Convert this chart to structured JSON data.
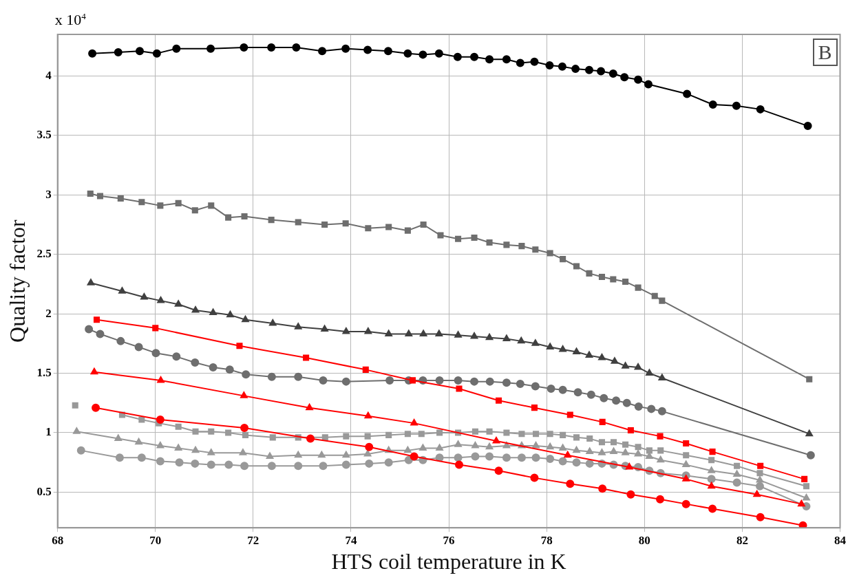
{
  "chart_data": {
    "type": "line",
    "xlabel": "HTS coil temperature in K",
    "ylabel": "Quality factor",
    "annotations": [
      "x 10$^{4}$",
      "B"
    ],
    "xlim": [
      68,
      84
    ],
    "xticks": [
      68,
      70,
      72,
      74,
      76,
      78,
      80,
      82,
      84
    ],
    "ylim": [
      0.2,
      4.35
    ],
    "yticks": [
      0.5,
      1,
      1.5,
      2,
      2.5,
      3,
      3.5,
      4
    ],
    "grid": true,
    "legend": false,
    "line_style": "solid",
    "series": [
      {
        "color": "#000000",
        "marker": "circle",
        "x": [
          68.71,
          69.24,
          69.68,
          70.03,
          70.43,
          71.13,
          71.81,
          72.37,
          72.88,
          73.41,
          73.89,
          74.34,
          74.76,
          75.16,
          75.47,
          75.8,
          76.18,
          76.52,
          76.83,
          77.18,
          77.46,
          77.75,
          78.06,
          78.32,
          78.59,
          78.87,
          79.11,
          79.36,
          79.59,
          79.87,
          80.08,
          80.87,
          81.4,
          81.88,
          82.37,
          83.34
        ],
        "values": [
          4.19,
          4.2,
          4.21,
          4.19,
          4.23,
          4.23,
          4.24,
          4.24,
          4.24,
          4.21,
          4.23,
          4.22,
          4.21,
          4.19,
          4.18,
          4.19,
          4.16,
          4.16,
          4.14,
          4.14,
          4.11,
          4.12,
          4.09,
          4.08,
          4.06,
          4.05,
          4.04,
          4.02,
          3.99,
          3.97,
          3.93,
          3.85,
          3.76,
          3.75,
          3.72,
          3.58
        ]
      },
      {
        "color": "#6e6e6e",
        "marker": "square",
        "x": [
          68.67,
          68.87,
          69.29,
          69.72,
          70.1,
          70.47,
          70.81,
          71.14,
          71.49,
          71.82,
          72.37,
          72.92,
          73.46,
          73.89,
          74.35,
          74.77,
          75.16,
          75.48,
          75.83,
          76.19,
          76.52,
          76.83,
          77.18,
          77.49,
          77.77,
          78.07,
          78.33,
          78.61,
          78.87,
          79.13,
          79.36,
          79.61,
          79.87,
          80.21,
          80.36,
          83.37
        ],
        "values": [
          3.01,
          2.99,
          2.97,
          2.94,
          2.91,
          2.93,
          2.87,
          2.91,
          2.81,
          2.82,
          2.79,
          2.77,
          2.75,
          2.76,
          2.72,
          2.73,
          2.7,
          2.75,
          2.66,
          2.63,
          2.64,
          2.6,
          2.58,
          2.57,
          2.54,
          2.51,
          2.46,
          2.4,
          2.34,
          2.31,
          2.29,
          2.27,
          2.22,
          2.15,
          2.11,
          1.45
        ]
      },
      {
        "color": "#404040",
        "marker": "triangle",
        "x": [
          68.68,
          69.32,
          69.77,
          70.11,
          70.47,
          70.82,
          71.18,
          71.53,
          71.84,
          72.4,
          72.92,
          73.46,
          73.9,
          74.35,
          74.77,
          75.18,
          75.48,
          75.8,
          76.19,
          76.52,
          76.83,
          77.18,
          77.48,
          77.77,
          78.07,
          78.33,
          78.61,
          78.87,
          79.13,
          79.39,
          79.61,
          79.87,
          80.1,
          80.36,
          83.37
        ],
        "values": [
          2.26,
          2.19,
          2.14,
          2.11,
          2.08,
          2.03,
          2.01,
          1.99,
          1.95,
          1.92,
          1.89,
          1.87,
          1.85,
          1.85,
          1.83,
          1.83,
          1.83,
          1.83,
          1.82,
          1.81,
          1.8,
          1.79,
          1.77,
          1.75,
          1.72,
          1.7,
          1.68,
          1.65,
          1.63,
          1.6,
          1.56,
          1.55,
          1.5,
          1.46,
          0.99
        ]
      },
      {
        "color": "#ff0000",
        "marker": "square",
        "x": [
          68.8,
          70.0,
          71.72,
          73.08,
          74.3,
          75.26,
          76.21,
          77.02,
          77.75,
          78.48,
          79.14,
          79.72,
          80.32,
          80.85,
          81.39,
          82.37,
          83.27
        ],
        "values": [
          1.95,
          1.88,
          1.73,
          1.63,
          1.53,
          1.44,
          1.37,
          1.27,
          1.21,
          1.15,
          1.09,
          1.02,
          0.97,
          0.91,
          0.84,
          0.72,
          0.61
        ]
      },
      {
        "color": "#6e6e6e",
        "marker": "circle",
        "x": [
          68.64,
          68.87,
          69.29,
          69.66,
          70.01,
          70.43,
          70.81,
          71.18,
          71.52,
          71.85,
          72.38,
          72.92,
          73.43,
          73.9,
          74.79,
          75.18,
          75.47,
          75.81,
          76.19,
          76.52,
          76.84,
          77.18,
          77.46,
          77.77,
          78.09,
          78.33,
          78.64,
          78.91,
          79.17,
          79.42,
          79.64,
          79.88,
          80.14,
          80.36,
          83.4
        ],
        "values": [
          1.87,
          1.83,
          1.77,
          1.72,
          1.67,
          1.64,
          1.59,
          1.55,
          1.53,
          1.49,
          1.47,
          1.47,
          1.44,
          1.43,
          1.44,
          1.44,
          1.44,
          1.44,
          1.44,
          1.43,
          1.43,
          1.42,
          1.41,
          1.39,
          1.37,
          1.36,
          1.34,
          1.32,
          1.29,
          1.27,
          1.25,
          1.22,
          1.2,
          1.18,
          0.81
        ]
      },
      {
        "color": "#ff0000",
        "marker": "triangle",
        "x": [
          68.75,
          70.11,
          71.81,
          73.15,
          74.35,
          75.29,
          76.97,
          78.43,
          79.69,
          80.85,
          81.37,
          82.3,
          83.21
        ],
        "values": [
          1.51,
          1.44,
          1.31,
          1.21,
          1.14,
          1.08,
          0.93,
          0.81,
          0.71,
          0.61,
          0.55,
          0.48,
          0.4
        ]
      },
      {
        "color": "#ff0000",
        "marker": "circle",
        "x": [
          68.78,
          70.1,
          71.82,
          73.17,
          74.37,
          75.29,
          76.21,
          77.02,
          77.75,
          78.48,
          79.14,
          79.72,
          80.32,
          80.85,
          81.39,
          82.37,
          83.24
        ],
        "values": [
          1.21,
          1.11,
          1.04,
          0.95,
          0.88,
          0.8,
          0.73,
          0.68,
          0.62,
          0.57,
          0.53,
          0.48,
          0.44,
          0.4,
          0.36,
          0.29,
          0.22
        ]
      },
      {
        "color": "#999999",
        "marker": "square",
        "x": [
          68.36,
          68.82,
          69.32,
          69.72,
          70.07,
          70.47,
          70.82,
          71.14,
          71.49,
          71.84,
          72.4,
          72.92,
          73.47,
          73.9,
          74.34,
          74.77,
          75.16,
          75.44,
          75.81,
          76.19,
          76.54,
          76.83,
          77.18,
          77.49,
          77.78,
          78.07,
          78.33,
          78.61,
          78.88,
          79.13,
          79.37,
          79.61,
          79.87,
          80.1,
          80.33,
          80.85,
          81.37,
          81.89,
          82.36,
          83.31
        ],
        "values": [
          1.23,
          null,
          1.15,
          1.11,
          1.08,
          1.05,
          1.01,
          1.01,
          1.0,
          0.98,
          0.96,
          0.96,
          0.96,
          0.97,
          0.97,
          0.98,
          0.99,
          0.99,
          1.0,
          1.0,
          1.01,
          1.01,
          1.0,
          0.99,
          0.99,
          0.99,
          0.98,
          0.96,
          0.95,
          0.92,
          0.92,
          0.9,
          0.88,
          0.85,
          0.85,
          0.81,
          0.77,
          0.72,
          0.66,
          0.55
        ]
      },
      {
        "color": "#999999",
        "marker": "triangle",
        "x": [
          68.39,
          69.24,
          69.66,
          70.1,
          70.47,
          70.82,
          71.14,
          71.79,
          72.34,
          72.92,
          73.4,
          73.9,
          74.34,
          74.77,
          75.16,
          75.47,
          75.81,
          76.19,
          76.54,
          76.83,
          77.18,
          77.49,
          77.78,
          78.07,
          78.33,
          78.61,
          78.88,
          79.13,
          79.37,
          79.61,
          79.87,
          80.1,
          80.33,
          80.85,
          81.37,
          81.89,
          82.36,
          83.31
        ],
        "values": [
          1.01,
          0.95,
          0.92,
          0.89,
          0.87,
          0.85,
          0.83,
          0.83,
          0.8,
          0.81,
          0.81,
          0.81,
          0.82,
          0.85,
          0.85,
          0.87,
          0.87,
          0.9,
          0.89,
          0.88,
          0.89,
          0.89,
          0.89,
          0.88,
          0.87,
          0.85,
          0.84,
          0.83,
          0.84,
          0.83,
          0.82,
          0.8,
          0.77,
          0.73,
          0.68,
          0.65,
          0.6,
          0.45
        ]
      },
      {
        "color": "#999999",
        "marker": "circle",
        "x": [
          68.48,
          69.27,
          69.72,
          70.1,
          70.49,
          70.81,
          71.14,
          71.5,
          71.82,
          72.38,
          72.92,
          73.43,
          73.9,
          74.37,
          74.77,
          75.18,
          75.47,
          75.81,
          76.19,
          76.54,
          76.83,
          77.18,
          77.49,
          77.78,
          78.07,
          78.33,
          78.61,
          78.88,
          79.13,
          79.37,
          79.61,
          79.87,
          80.1,
          80.33,
          80.85,
          81.37,
          81.89,
          82.36,
          83.31
        ],
        "values": [
          0.85,
          0.79,
          0.79,
          0.76,
          0.75,
          0.74,
          0.73,
          0.73,
          0.72,
          0.72,
          0.72,
          0.72,
          0.73,
          0.74,
          0.75,
          0.77,
          0.77,
          0.79,
          0.79,
          0.8,
          0.8,
          0.79,
          0.79,
          0.79,
          0.78,
          0.76,
          0.75,
          0.74,
          0.74,
          0.73,
          0.72,
          0.71,
          0.68,
          0.66,
          0.64,
          0.61,
          0.58,
          0.55,
          0.38
        ]
      }
    ]
  }
}
